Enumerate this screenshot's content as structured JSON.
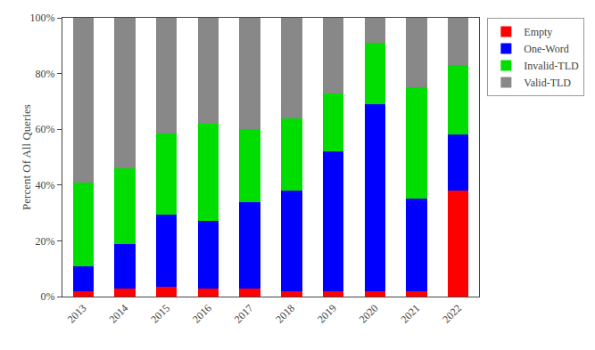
{
  "chart_data": {
    "type": "bar",
    "stacked": true,
    "categories": [
      "2013",
      "2014",
      "2015",
      "2016",
      "2017",
      "2018",
      "2019",
      "2020",
      "2021",
      "2022"
    ],
    "series": [
      {
        "name": "Empty",
        "color": "#ff0000",
        "values": [
          2.0,
          3.0,
          3.5,
          3.0,
          3.0,
          2.0,
          2.0,
          2.0,
          2.0,
          38.0
        ]
      },
      {
        "name": "One-Word",
        "color": "#0000ff",
        "values": [
          9.0,
          16.0,
          26.0,
          24.0,
          31.0,
          36.0,
          50.0,
          67.0,
          33.0,
          20.0
        ]
      },
      {
        "name": "Invalid-TLD",
        "color": "#00dd00",
        "values": [
          30.0,
          27.0,
          29.0,
          35.0,
          26.0,
          26.0,
          21.0,
          22.0,
          40.0,
          25.0
        ]
      },
      {
        "name": "Valid-TLD",
        "color": "#888888",
        "values": [
          59.0,
          54.0,
          41.5,
          38.0,
          40.0,
          36.0,
          27.0,
          9.0,
          25.0,
          17.0
        ]
      }
    ],
    "ylabel": "Percent Of All Queries",
    "ylim": [
      0,
      100
    ],
    "yticks": [
      {
        "value": 0,
        "label": "0%"
      },
      {
        "value": 20,
        "label": "20%"
      },
      {
        "value": 40,
        "label": "40%"
      },
      {
        "value": 60,
        "label": "60%"
      },
      {
        "value": 80,
        "label": "80%"
      },
      {
        "value": 100,
        "label": "100%"
      }
    ],
    "grid": false,
    "legend": "right"
  }
}
